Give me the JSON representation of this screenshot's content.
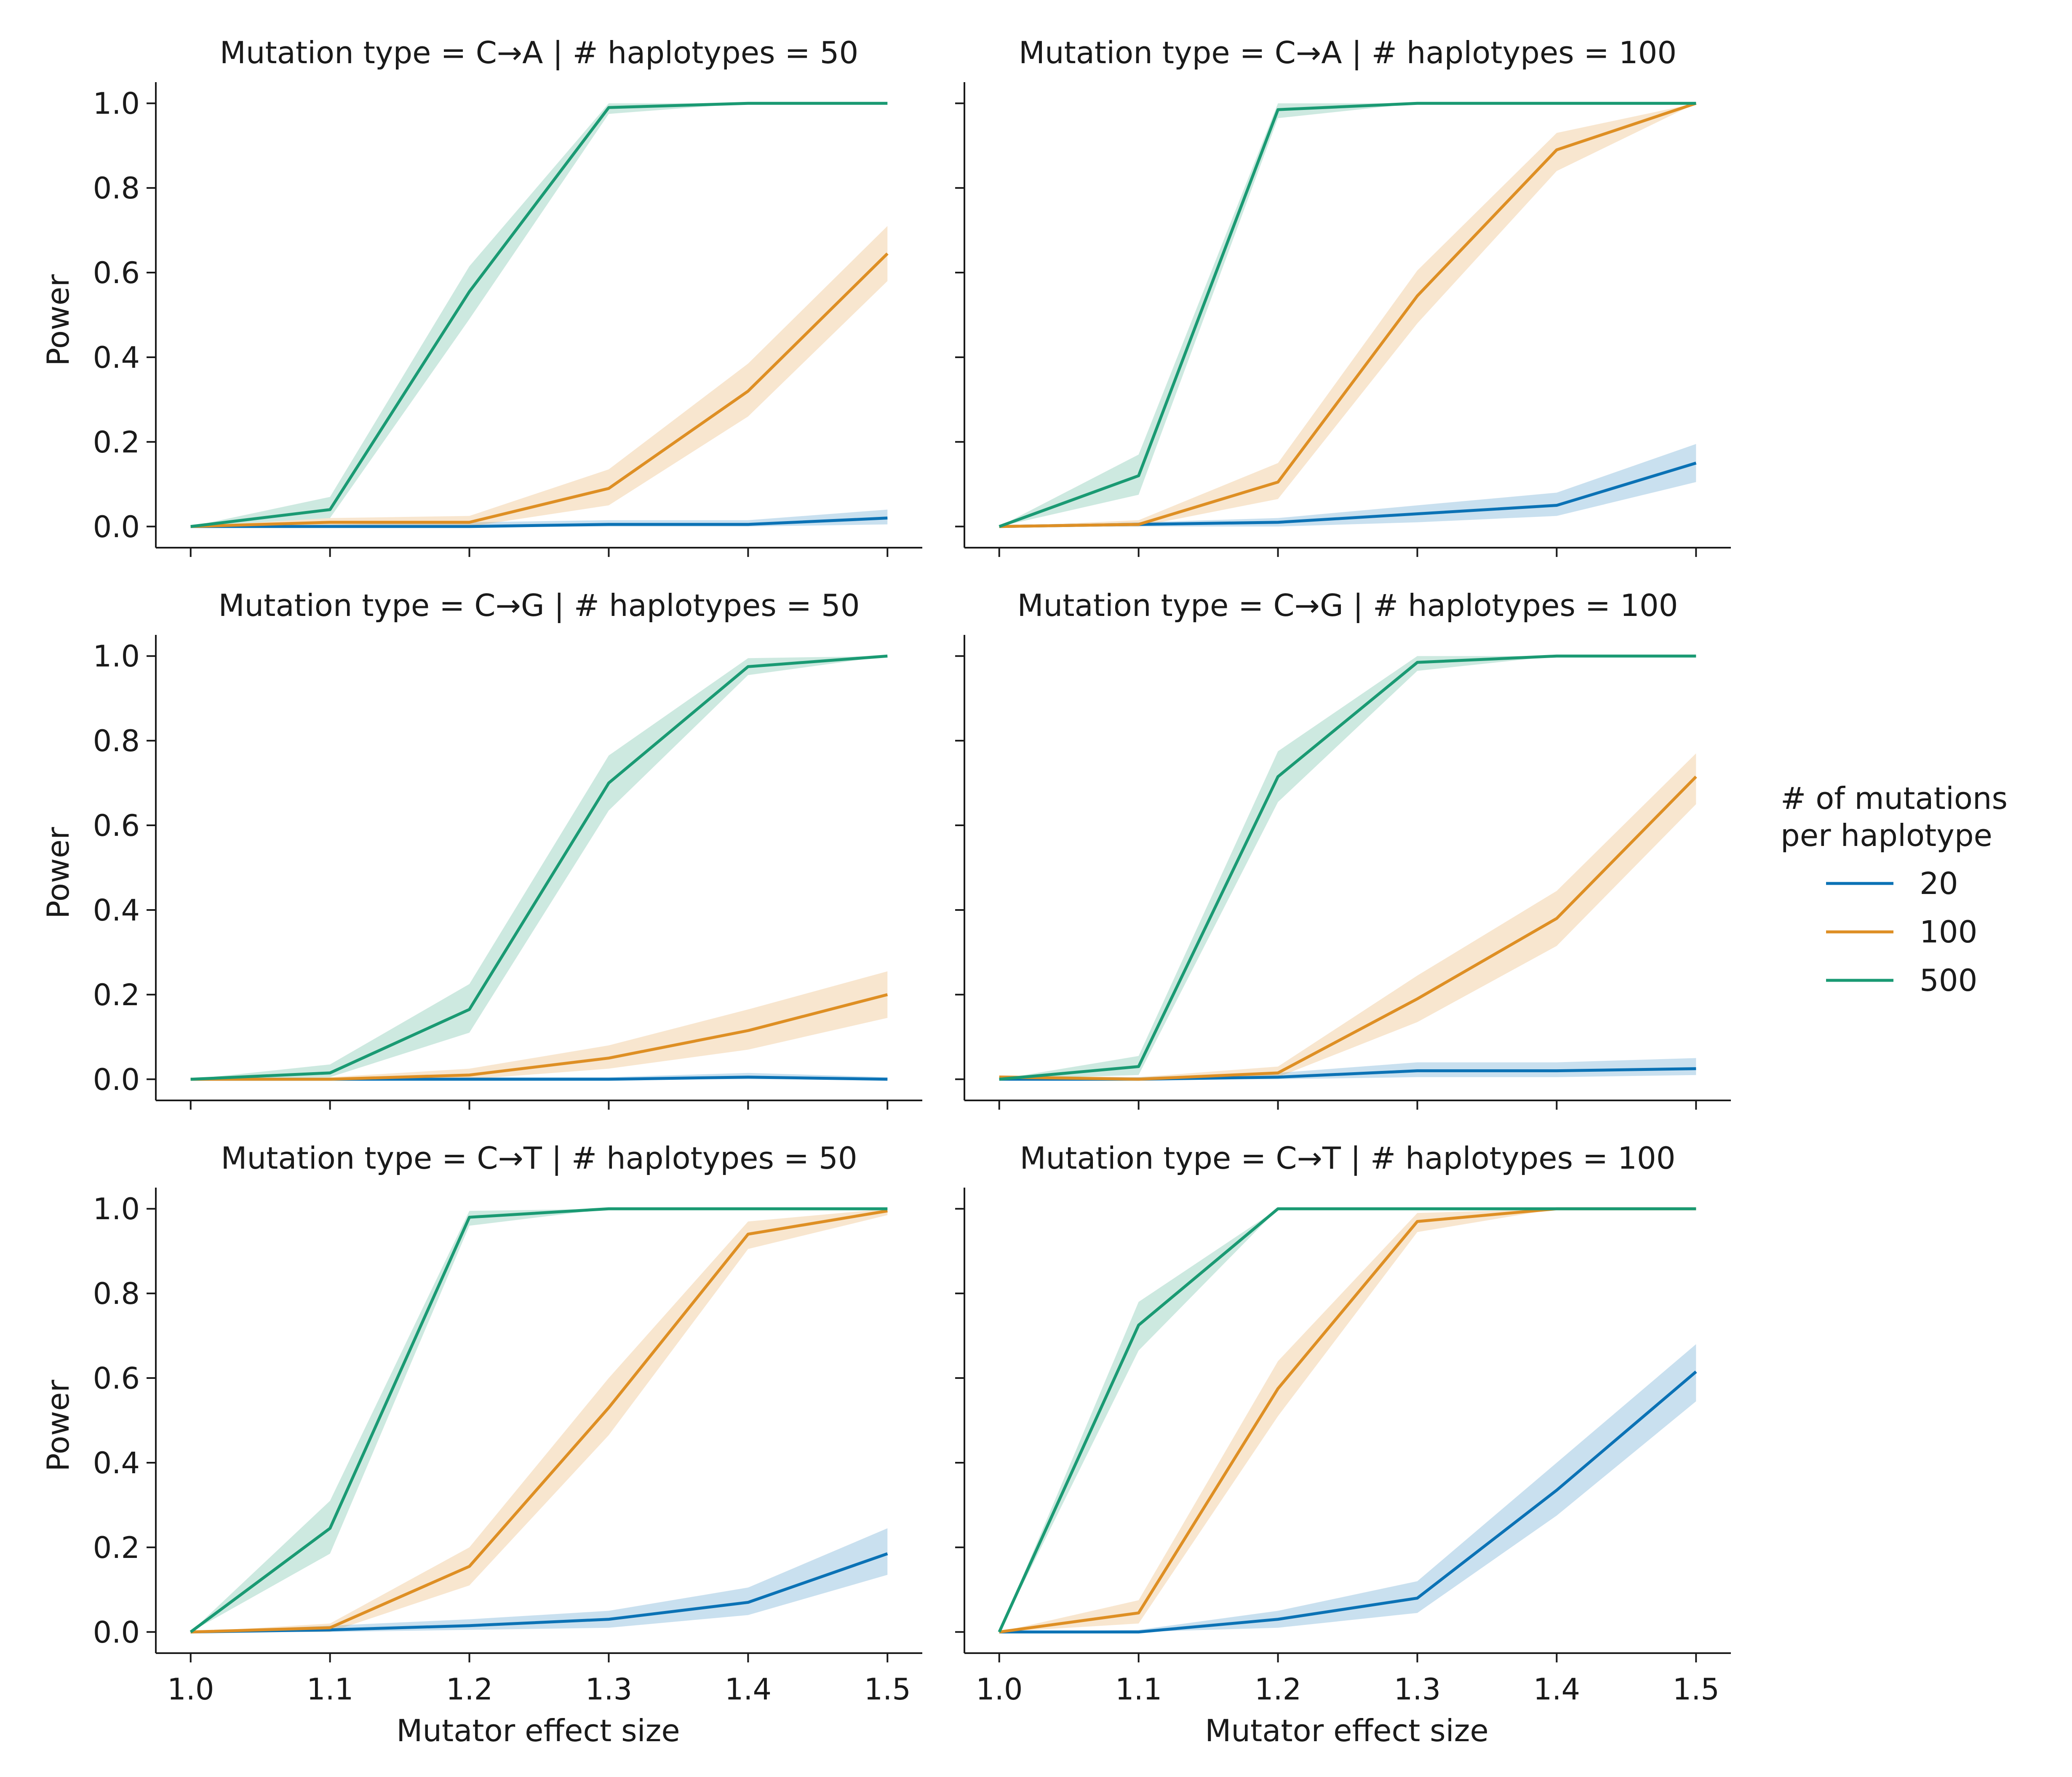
{
  "x_label": "Mutator effect size",
  "y_label": "Power",
  "legend": {
    "title_line1": "# of mutations",
    "title_line2": "per haplotype",
    "entries": [
      "20",
      "100",
      "500"
    ]
  },
  "colors": {
    "20": "#0b72b5",
    "100": "#de8f24",
    "500": "#1a9a73"
  },
  "chart_data": [
    {
      "type": "line",
      "title": "Mutation type = C→A | # haplotypes = 50",
      "x": [
        1.0,
        1.1,
        1.2,
        1.3,
        1.4,
        1.5
      ],
      "xlim": [
        0.975,
        1.525
      ],
      "ylim": [
        -0.05,
        1.05
      ],
      "xticks": [
        "1.0",
        "1.1",
        "1.2",
        "1.3",
        "1.4",
        "1.5"
      ],
      "yticks": [
        "0.0",
        "0.2",
        "0.4",
        "0.6",
        "0.8",
        "1.0"
      ],
      "series": [
        {
          "name": "20",
          "values": [
            0.0,
            0.0,
            0.0,
            0.005,
            0.005,
            0.02
          ],
          "lower": [
            0.0,
            0.0,
            0.0,
            0.0,
            0.0,
            0.005
          ],
          "upper": [
            0.0,
            0.005,
            0.01,
            0.015,
            0.015,
            0.04
          ]
        },
        {
          "name": "100",
          "values": [
            0.0,
            0.01,
            0.01,
            0.09,
            0.32,
            0.645
          ],
          "lower": [
            0.0,
            0.0,
            0.0,
            0.05,
            0.26,
            0.58
          ],
          "upper": [
            0.0,
            0.02,
            0.025,
            0.135,
            0.385,
            0.71
          ]
        },
        {
          "name": "500",
          "values": [
            0.0,
            0.04,
            0.555,
            0.99,
            1.0,
            1.0
          ],
          "lower": [
            0.0,
            0.02,
            0.49,
            0.975,
            1.0,
            1.0
          ],
          "upper": [
            0.0,
            0.07,
            0.615,
            1.0,
            1.0,
            1.0
          ]
        }
      ]
    },
    {
      "type": "line",
      "title": "Mutation type = C→A | # haplotypes = 100",
      "x": [
        1.0,
        1.1,
        1.2,
        1.3,
        1.4,
        1.5
      ],
      "xlim": [
        0.975,
        1.525
      ],
      "ylim": [
        -0.05,
        1.05
      ],
      "xticks": [
        "1.0",
        "1.1",
        "1.2",
        "1.3",
        "1.4",
        "1.5"
      ],
      "yticks": [
        "0.0",
        "0.2",
        "0.4",
        "0.6",
        "0.8",
        "1.0"
      ],
      "series": [
        {
          "name": "20",
          "values": [
            0.0,
            0.005,
            0.01,
            0.03,
            0.05,
            0.15
          ],
          "lower": [
            0.0,
            0.0,
            0.0,
            0.01,
            0.025,
            0.105
          ],
          "upper": [
            0.0,
            0.01,
            0.02,
            0.05,
            0.08,
            0.195
          ]
        },
        {
          "name": "100",
          "values": [
            0.0,
            0.005,
            0.105,
            0.545,
            0.89,
            1.0
          ],
          "lower": [
            0.0,
            0.0,
            0.065,
            0.48,
            0.84,
            1.0
          ],
          "upper": [
            0.0,
            0.015,
            0.15,
            0.605,
            0.93,
            1.0
          ]
        },
        {
          "name": "500",
          "values": [
            0.0,
            0.12,
            0.985,
            1.0,
            1.0,
            1.0
          ],
          "lower": [
            0.0,
            0.075,
            0.965,
            1.0,
            1.0,
            1.0
          ],
          "upper": [
            0.0,
            0.17,
            1.0,
            1.0,
            1.0,
            1.0
          ]
        }
      ]
    },
    {
      "type": "line",
      "title": "Mutation type = C→G | # haplotypes = 50",
      "x": [
        1.0,
        1.1,
        1.2,
        1.3,
        1.4,
        1.5
      ],
      "xlim": [
        0.975,
        1.525
      ],
      "ylim": [
        -0.05,
        1.05
      ],
      "xticks": [
        "1.0",
        "1.1",
        "1.2",
        "1.3",
        "1.4",
        "1.5"
      ],
      "yticks": [
        "0.0",
        "0.2",
        "0.4",
        "0.6",
        "0.8",
        "1.0"
      ],
      "series": [
        {
          "name": "20",
          "values": [
            0.0,
            0.0,
            0.0,
            0.0,
            0.005,
            0.0
          ],
          "lower": [
            0.0,
            0.0,
            0.0,
            0.0,
            0.0,
            0.0
          ],
          "upper": [
            0.0,
            0.0,
            0.005,
            0.005,
            0.015,
            0.005
          ]
        },
        {
          "name": "100",
          "values": [
            0.0,
            0.0,
            0.01,
            0.05,
            0.115,
            0.2
          ],
          "lower": [
            0.0,
            0.0,
            0.0,
            0.025,
            0.07,
            0.145
          ],
          "upper": [
            0.0,
            0.005,
            0.025,
            0.08,
            0.165,
            0.255
          ]
        },
        {
          "name": "500",
          "values": [
            0.0,
            0.015,
            0.165,
            0.7,
            0.975,
            1.0
          ],
          "lower": [
            0.0,
            0.005,
            0.11,
            0.635,
            0.955,
            1.0
          ],
          "upper": [
            0.0,
            0.035,
            0.225,
            0.765,
            0.995,
            1.0
          ]
        }
      ]
    },
    {
      "type": "line",
      "title": "Mutation type = C→G | # haplotypes = 100",
      "x": [
        1.0,
        1.1,
        1.2,
        1.3,
        1.4,
        1.5
      ],
      "xlim": [
        0.975,
        1.525
      ],
      "ylim": [
        -0.05,
        1.05
      ],
      "xticks": [
        "1.0",
        "1.1",
        "1.2",
        "1.3",
        "1.4",
        "1.5"
      ],
      "yticks": [
        "0.0",
        "0.2",
        "0.4",
        "0.6",
        "0.8",
        "1.0"
      ],
      "series": [
        {
          "name": "20",
          "values": [
            0.0,
            0.0,
            0.005,
            0.02,
            0.02,
            0.025
          ],
          "lower": [
            0.0,
            0.0,
            0.0,
            0.005,
            0.005,
            0.01
          ],
          "upper": [
            0.005,
            0.005,
            0.015,
            0.04,
            0.04,
            0.05
          ]
        },
        {
          "name": "100",
          "values": [
            0.005,
            0.0,
            0.015,
            0.19,
            0.38,
            0.715
          ],
          "lower": [
            0.0,
            0.0,
            0.005,
            0.135,
            0.315,
            0.65
          ],
          "upper": [
            0.01,
            0.005,
            0.03,
            0.245,
            0.445,
            0.77
          ]
        },
        {
          "name": "500",
          "values": [
            0.0,
            0.03,
            0.715,
            0.985,
            1.0,
            1.0
          ],
          "lower": [
            0.0,
            0.01,
            0.655,
            0.965,
            1.0,
            1.0
          ],
          "upper": [
            0.0,
            0.055,
            0.775,
            1.0,
            1.0,
            1.0
          ]
        }
      ]
    },
    {
      "type": "line",
      "title": "Mutation type = C→T | # haplotypes = 50",
      "x": [
        1.0,
        1.1,
        1.2,
        1.3,
        1.4,
        1.5
      ],
      "xlim": [
        0.975,
        1.525
      ],
      "ylim": [
        -0.05,
        1.05
      ],
      "xticks": [
        "1.0",
        "1.1",
        "1.2",
        "1.3",
        "1.4",
        "1.5"
      ],
      "yticks": [
        "0.0",
        "0.2",
        "0.4",
        "0.6",
        "0.8",
        "1.0"
      ],
      "series": [
        {
          "name": "20",
          "values": [
            0.0,
            0.005,
            0.015,
            0.03,
            0.07,
            0.185
          ],
          "lower": [
            0.0,
            0.0,
            0.005,
            0.01,
            0.04,
            0.135
          ],
          "upper": [
            0.0,
            0.015,
            0.03,
            0.05,
            0.105,
            0.245
          ]
        },
        {
          "name": "100",
          "values": [
            0.0,
            0.01,
            0.155,
            0.53,
            0.94,
            0.995
          ],
          "lower": [
            0.0,
            0.0,
            0.11,
            0.465,
            0.905,
            0.985
          ],
          "upper": [
            0.0,
            0.02,
            0.2,
            0.6,
            0.97,
            1.0
          ]
        },
        {
          "name": "500",
          "values": [
            0.0,
            0.245,
            0.98,
            1.0,
            1.0,
            1.0
          ],
          "lower": [
            0.0,
            0.185,
            0.96,
            1.0,
            1.0,
            1.0
          ],
          "upper": [
            0.0,
            0.31,
            0.995,
            1.0,
            1.0,
            1.0
          ]
        }
      ]
    },
    {
      "type": "line",
      "title": "Mutation type = C→T | # haplotypes = 100",
      "x": [
        1.0,
        1.1,
        1.2,
        1.3,
        1.4,
        1.5
      ],
      "xlim": [
        0.975,
        1.525
      ],
      "ylim": [
        -0.05,
        1.05
      ],
      "xticks": [
        "1.0",
        "1.1",
        "1.2",
        "1.3",
        "1.4",
        "1.5"
      ],
      "yticks": [
        "0.0",
        "0.2",
        "0.4",
        "0.6",
        "0.8",
        "1.0"
      ],
      "series": [
        {
          "name": "20",
          "values": [
            0.0,
            0.0,
            0.03,
            0.08,
            0.335,
            0.615
          ],
          "lower": [
            0.0,
            0.0,
            0.01,
            0.045,
            0.275,
            0.545
          ],
          "upper": [
            0.0,
            0.005,
            0.05,
            0.12,
            0.4,
            0.68
          ]
        },
        {
          "name": "100",
          "values": [
            0.0,
            0.045,
            0.575,
            0.97,
            1.0,
            1.0
          ],
          "lower": [
            0.0,
            0.02,
            0.51,
            0.945,
            1.0,
            1.0
          ],
          "upper": [
            0.0,
            0.075,
            0.64,
            0.99,
            1.0,
            1.0
          ]
        },
        {
          "name": "500",
          "values": [
            0.0,
            0.725,
            1.0,
            1.0,
            1.0,
            1.0
          ],
          "lower": [
            0.0,
            0.665,
            1.0,
            1.0,
            1.0,
            1.0
          ],
          "upper": [
            0.0,
            0.78,
            1.0,
            1.0,
            1.0,
            1.0
          ]
        }
      ]
    }
  ]
}
